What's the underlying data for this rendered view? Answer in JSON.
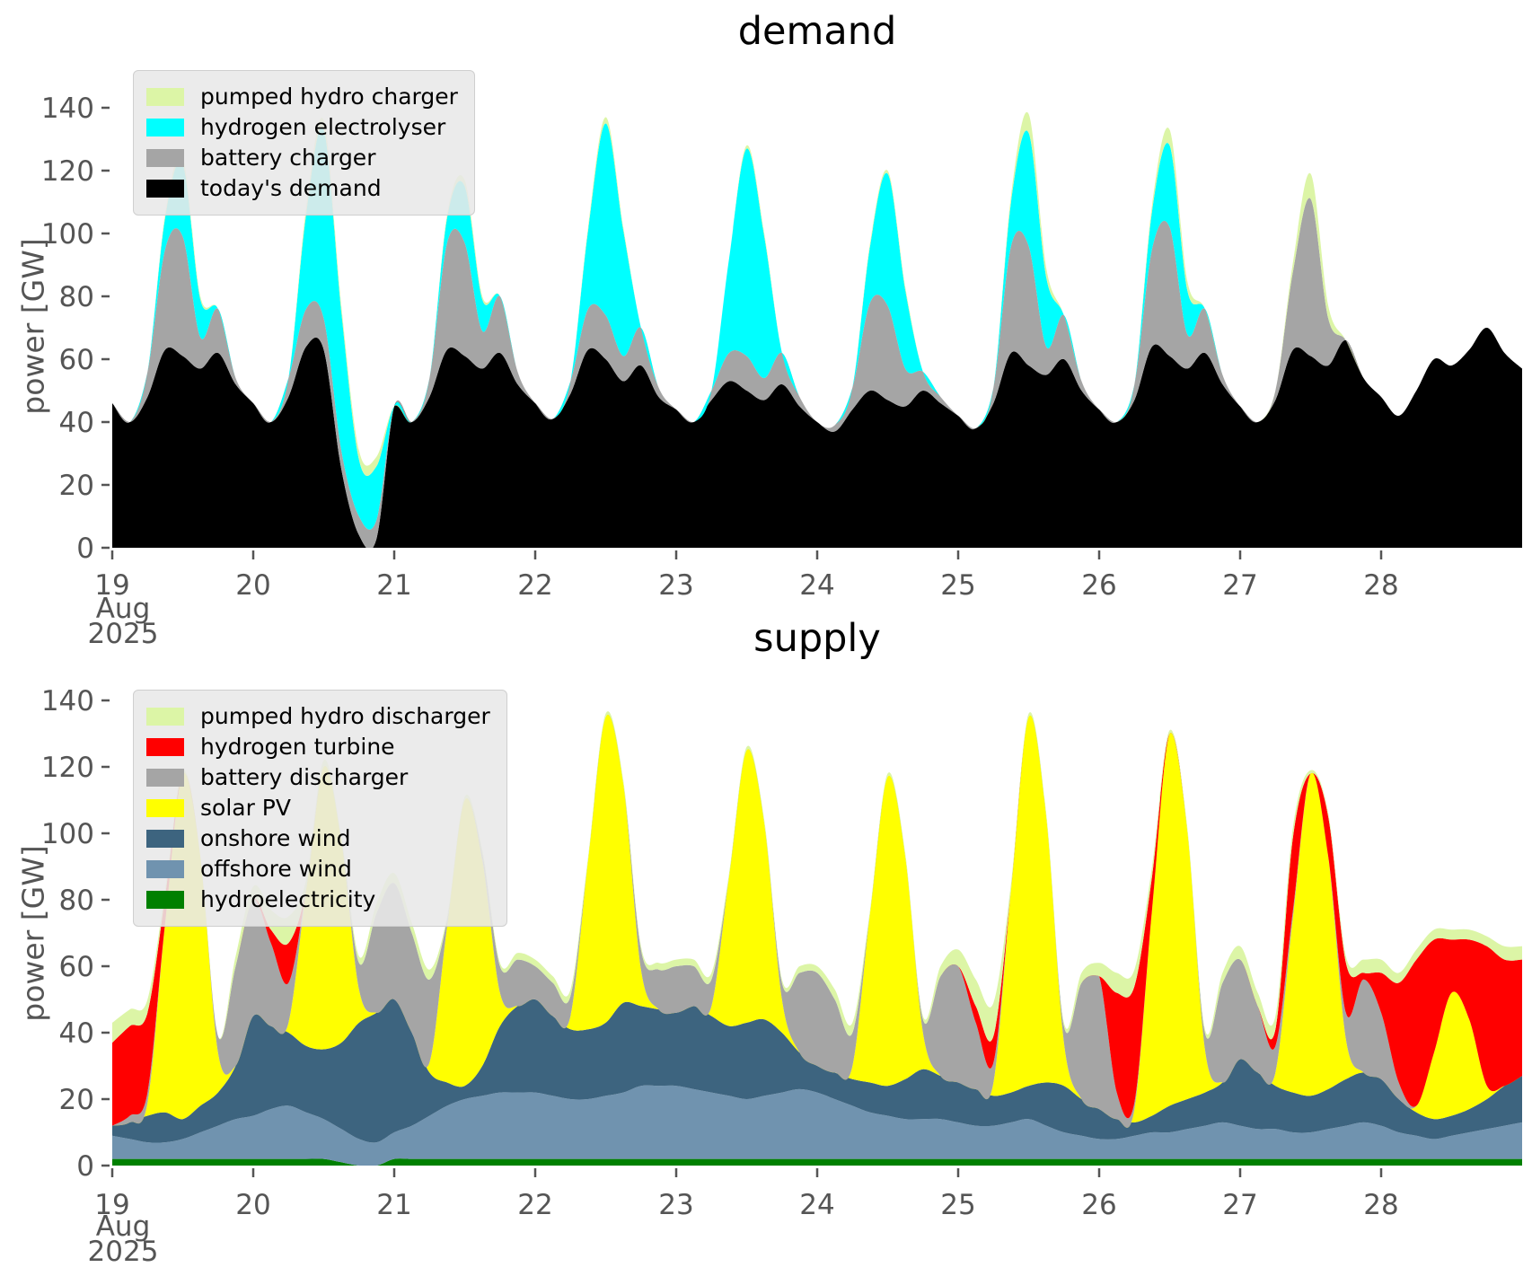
{
  "page_title": "demand and supply power charts",
  "chart_data": [
    {
      "type": "area",
      "stacked": true,
      "title": "demand",
      "ylabel": "power [GW]",
      "x_unit": "day of month",
      "x_month_year": [
        "Aug",
        "2025"
      ],
      "x_start_day": 19,
      "x_step_days": 0.125,
      "x_ticks": [
        19,
        20,
        21,
        22,
        23,
        24,
        25,
        26,
        27,
        28
      ],
      "y_ticks": [
        0,
        20,
        40,
        60,
        80,
        100,
        120,
        140
      ],
      "ylim": [
        0,
        150
      ],
      "grid": false,
      "legend_position": "upper left",
      "legend": [
        {
          "label": "pumped hydro charger",
          "color": "#dcf5a6"
        },
        {
          "label": "hydrogen electrolyser",
          "color": "#00ffff"
        },
        {
          "label": "battery charger",
          "color": "#a5a5a5"
        },
        {
          "label": "today's demand",
          "color": "#000000"
        }
      ],
      "series": [
        {
          "name": "todays-demand",
          "label": "today's demand",
          "color": "#000000",
          "values": [
            46,
            40,
            48,
            63,
            61,
            57,
            62,
            52,
            46,
            40,
            48,
            64,
            63,
            25,
            4,
            3,
            45,
            40,
            48,
            63,
            61,
            57,
            62,
            52,
            46,
            41,
            49,
            63,
            60,
            53,
            58,
            48,
            44,
            40,
            47,
            53,
            50,
            47,
            52,
            45,
            40,
            37,
            44,
            50,
            47,
            45,
            50,
            46,
            42,
            38,
            46,
            62,
            58,
            55,
            60,
            50,
            44,
            40,
            47,
            64,
            61,
            57,
            62,
            52,
            45,
            40,
            47,
            63,
            61,
            58,
            66,
            54,
            48,
            42,
            50,
            60,
            58,
            63,
            70,
            62,
            57
          ]
        },
        {
          "name": "battery-charger",
          "label": "battery charger",
          "color": "#a5a5a5",
          "values": [
            0,
            0,
            8,
            32,
            38,
            10,
            14,
            2,
            0,
            0,
            6,
            12,
            10,
            6,
            6,
            6,
            0,
            0,
            6,
            34,
            36,
            12,
            18,
            4,
            0,
            0,
            4,
            13,
            14,
            8,
            12,
            3,
            0,
            0,
            3,
            9,
            11,
            7,
            10,
            3,
            0,
            2,
            7,
            28,
            30,
            12,
            6,
            2,
            0,
            0,
            5,
            34,
            38,
            9,
            14,
            3,
            0,
            0,
            5,
            31,
            41,
            11,
            14,
            3,
            0,
            0,
            3,
            25,
            50,
            15,
            0,
            0,
            0,
            0,
            0,
            0,
            0,
            0,
            0,
            0,
            0
          ]
        },
        {
          "name": "hydrogen-electrolyser",
          "label": "hydrogen electrolyser",
          "color": "#00ffff",
          "values": [
            0,
            0,
            0,
            10,
            23,
            12,
            0,
            0,
            0,
            0,
            0,
            30,
            60,
            44,
            18,
            17,
            0,
            0,
            0,
            8,
            18,
            10,
            0,
            0,
            0,
            0,
            0,
            25,
            61,
            40,
            0,
            0,
            0,
            0,
            0,
            30,
            66,
            45,
            0,
            0,
            0,
            0,
            0,
            18,
            42,
            25,
            0,
            0,
            0,
            0,
            0,
            14,
            36,
            22,
            0,
            0,
            0,
            0,
            0,
            12,
            26,
            14,
            0,
            0,
            0,
            0,
            0,
            0,
            0,
            0,
            0,
            0,
            0,
            0,
            0,
            0,
            0,
            0,
            0,
            0,
            0
          ]
        },
        {
          "name": "pumped-hydro-charger",
          "label": "pumped hydro charger",
          "color": "#dcf5a6",
          "values": [
            0,
            0,
            0,
            1,
            2,
            1,
            0,
            0,
            0,
            0,
            0,
            2,
            3,
            2,
            3,
            3,
            0,
            0,
            0,
            1,
            2,
            1,
            0,
            0,
            0,
            0,
            0,
            1,
            2,
            1,
            0,
            0,
            0,
            0,
            0,
            0,
            1,
            1,
            0,
            0,
            0,
            0,
            0,
            1,
            1,
            1,
            0,
            0,
            0,
            0,
            0,
            2,
            6,
            3,
            0,
            0,
            0,
            0,
            0,
            2,
            5,
            3,
            0,
            0,
            0,
            0,
            0,
            3,
            8,
            4,
            0,
            0,
            0,
            0,
            0,
            0,
            0,
            0,
            0,
            0,
            0
          ]
        }
      ]
    },
    {
      "type": "area",
      "stacked": true,
      "title": "supply",
      "ylabel": "power [GW]",
      "x_unit": "day of month",
      "x_month_year": [
        "Aug",
        "2025"
      ],
      "x_start_day": 19,
      "x_step_days": 0.125,
      "x_ticks": [
        19,
        20,
        21,
        22,
        23,
        24,
        25,
        26,
        27,
        28
      ],
      "y_ticks": [
        0,
        20,
        40,
        60,
        80,
        100,
        120,
        140
      ],
      "ylim": [
        0,
        150
      ],
      "grid": false,
      "legend_position": "upper left",
      "legend": [
        {
          "label": "pumped hydro discharger",
          "color": "#dcf5a6"
        },
        {
          "label": "hydrogen turbine",
          "color": "#ff0000"
        },
        {
          "label": "battery discharger",
          "color": "#a5a5a5"
        },
        {
          "label": "solar PV",
          "color": "#ffff00"
        },
        {
          "label": "onshore wind",
          "color": "#3d647f"
        },
        {
          "label": "offshore wind",
          "color": "#7093af"
        },
        {
          "label": "hydroelectricity",
          "color": "#008000"
        }
      ],
      "series": [
        {
          "name": "hydroelectricity",
          "label": "hydroelectricity",
          "color": "#008000",
          "values": [
            2,
            2,
            2,
            2,
            2,
            2,
            2,
            2,
            2,
            2,
            2,
            2,
            2,
            1,
            0,
            0,
            2,
            2,
            2,
            2,
            2,
            2,
            2,
            2,
            2,
            2,
            2,
            2,
            2,
            2,
            2,
            2,
            2,
            2,
            2,
            2,
            2,
            2,
            2,
            2,
            2,
            2,
            2,
            2,
            2,
            2,
            2,
            2,
            2,
            2,
            2,
            2,
            2,
            2,
            2,
            2,
            2,
            2,
            2,
            2,
            2,
            2,
            2,
            2,
            2,
            2,
            2,
            2,
            2,
            2,
            2,
            2,
            2,
            2,
            2,
            2,
            2,
            2,
            2,
            2,
            2
          ]
        },
        {
          "name": "offshore-wind",
          "label": "offshore wind",
          "color": "#7093af",
          "values": [
            7,
            6,
            5,
            5,
            6,
            8,
            10,
            12,
            13,
            15,
            16,
            14,
            12,
            10,
            8,
            7,
            8,
            10,
            13,
            16,
            18,
            19,
            20,
            20,
            20,
            19,
            18,
            18,
            19,
            20,
            22,
            22,
            22,
            21,
            20,
            19,
            18,
            19,
            20,
            21,
            20,
            18,
            16,
            14,
            13,
            12,
            12,
            12,
            11,
            10,
            10,
            11,
            12,
            10,
            8,
            7,
            6,
            6,
            7,
            8,
            8,
            9,
            10,
            11,
            10,
            9,
            9,
            8,
            8,
            9,
            10,
            11,
            10,
            8,
            7,
            6,
            7,
            8,
            9,
            10,
            11
          ]
        },
        {
          "name": "onshore-wind",
          "label": "onshore wind",
          "color": "#3d647f",
          "values": [
            3,
            5,
            8,
            9,
            6,
            8,
            10,
            16,
            30,
            25,
            22,
            20,
            21,
            26,
            35,
            39,
            40,
            28,
            13,
            7,
            4,
            9,
            20,
            26,
            28,
            24,
            21,
            21,
            22,
            27,
            24,
            23,
            22,
            25,
            23,
            21,
            23,
            23,
            18,
            11,
            8,
            8,
            8,
            9,
            9,
            12,
            15,
            13,
            12,
            11,
            9,
            9,
            10,
            13,
            14,
            11,
            9,
            6,
            4,
            5,
            8,
            9,
            10,
            12,
            20,
            17,
            13,
            12,
            11,
            12,
            14,
            15,
            14,
            10,
            7,
            6,
            6,
            7,
            9,
            12,
            14
          ]
        },
        {
          "name": "solar-pv",
          "label": "solar PV",
          "color": "#ffff00",
          "values": [
            0,
            0,
            4,
            57,
            104,
            75,
            12,
            0,
            0,
            0,
            3,
            47,
            85,
            61,
            10,
            0,
            0,
            0,
            3,
            47,
            86,
            62,
            10,
            0,
            0,
            0,
            4,
            51,
            92,
            66,
            11,
            0,
            0,
            0,
            3,
            45,
            82,
            59,
            10,
            0,
            0,
            0,
            4,
            51,
            93,
            67,
            11,
            0,
            0,
            0,
            4,
            61,
            111,
            80,
            13,
            0,
            0,
            0,
            4,
            62,
            112,
            81,
            13,
            0,
            0,
            0,
            4,
            53,
            97,
            70,
            12,
            0,
            0,
            0,
            2,
            20,
            37,
            27,
            4,
            0,
            0
          ]
        },
        {
          "name": "battery-discharger",
          "label": "battery discharger",
          "color": "#a5a5a5",
          "values": [
            0,
            2,
            3,
            0,
            0,
            0,
            5,
            30,
            35,
            25,
            12,
            0,
            0,
            0,
            8,
            30,
            35,
            30,
            25,
            2,
            0,
            2,
            8,
            14,
            10,
            10,
            6,
            0,
            0,
            0,
            6,
            12,
            14,
            12,
            8,
            0,
            0,
            0,
            5,
            24,
            28,
            22,
            10,
            0,
            0,
            0,
            4,
            30,
            35,
            20,
            6,
            0,
            0,
            0,
            5,
            35,
            40,
            8,
            2,
            0,
            0,
            0,
            5,
            30,
            30,
            20,
            8,
            2,
            0,
            0,
            8,
            28,
            20,
            5,
            0,
            0,
            0,
            0,
            0,
            0,
            0
          ]
        },
        {
          "name": "hydrogen-turbine",
          "label": "hydrogen turbine",
          "color": "#ff0000",
          "values": [
            25,
            27,
            24,
            8,
            0,
            0,
            0,
            0,
            0,
            4,
            12,
            0,
            0,
            0,
            0,
            0,
            0,
            0,
            0,
            0,
            0,
            0,
            0,
            0,
            0,
            0,
            0,
            0,
            0,
            0,
            0,
            0,
            0,
            0,
            0,
            0,
            0,
            0,
            0,
            0,
            0,
            0,
            0,
            0,
            0,
            0,
            0,
            0,
            0,
            5,
            8,
            0,
            0,
            0,
            0,
            0,
            0,
            30,
            35,
            10,
            0,
            0,
            0,
            0,
            0,
            0,
            5,
            22,
            0,
            12,
            15,
            2,
            12,
            30,
            44,
            34,
            16,
            24,
            42,
            38,
            35
          ]
        },
        {
          "name": "pumped-hydro-discharger",
          "label": "pumped hydro discharger",
          "color": "#dcf5a6",
          "values": [
            6,
            5,
            4,
            2,
            1,
            0,
            0,
            3,
            4,
            6,
            8,
            3,
            2,
            1,
            2,
            3,
            3,
            3,
            3,
            1,
            1,
            1,
            1,
            2,
            2,
            2,
            2,
            1,
            1,
            1,
            1,
            2,
            2,
            2,
            2,
            1,
            1,
            1,
            1,
            2,
            2,
            3,
            3,
            1,
            1,
            1,
            1,
            3,
            5,
            8,
            10,
            2,
            1,
            1,
            1,
            3,
            4,
            6,
            5,
            3,
            1,
            1,
            1,
            3,
            4,
            4,
            4,
            3,
            1,
            1,
            2,
            4,
            4,
            3,
            3,
            3,
            3,
            3,
            3,
            4,
            4
          ]
        }
      ]
    }
  ]
}
